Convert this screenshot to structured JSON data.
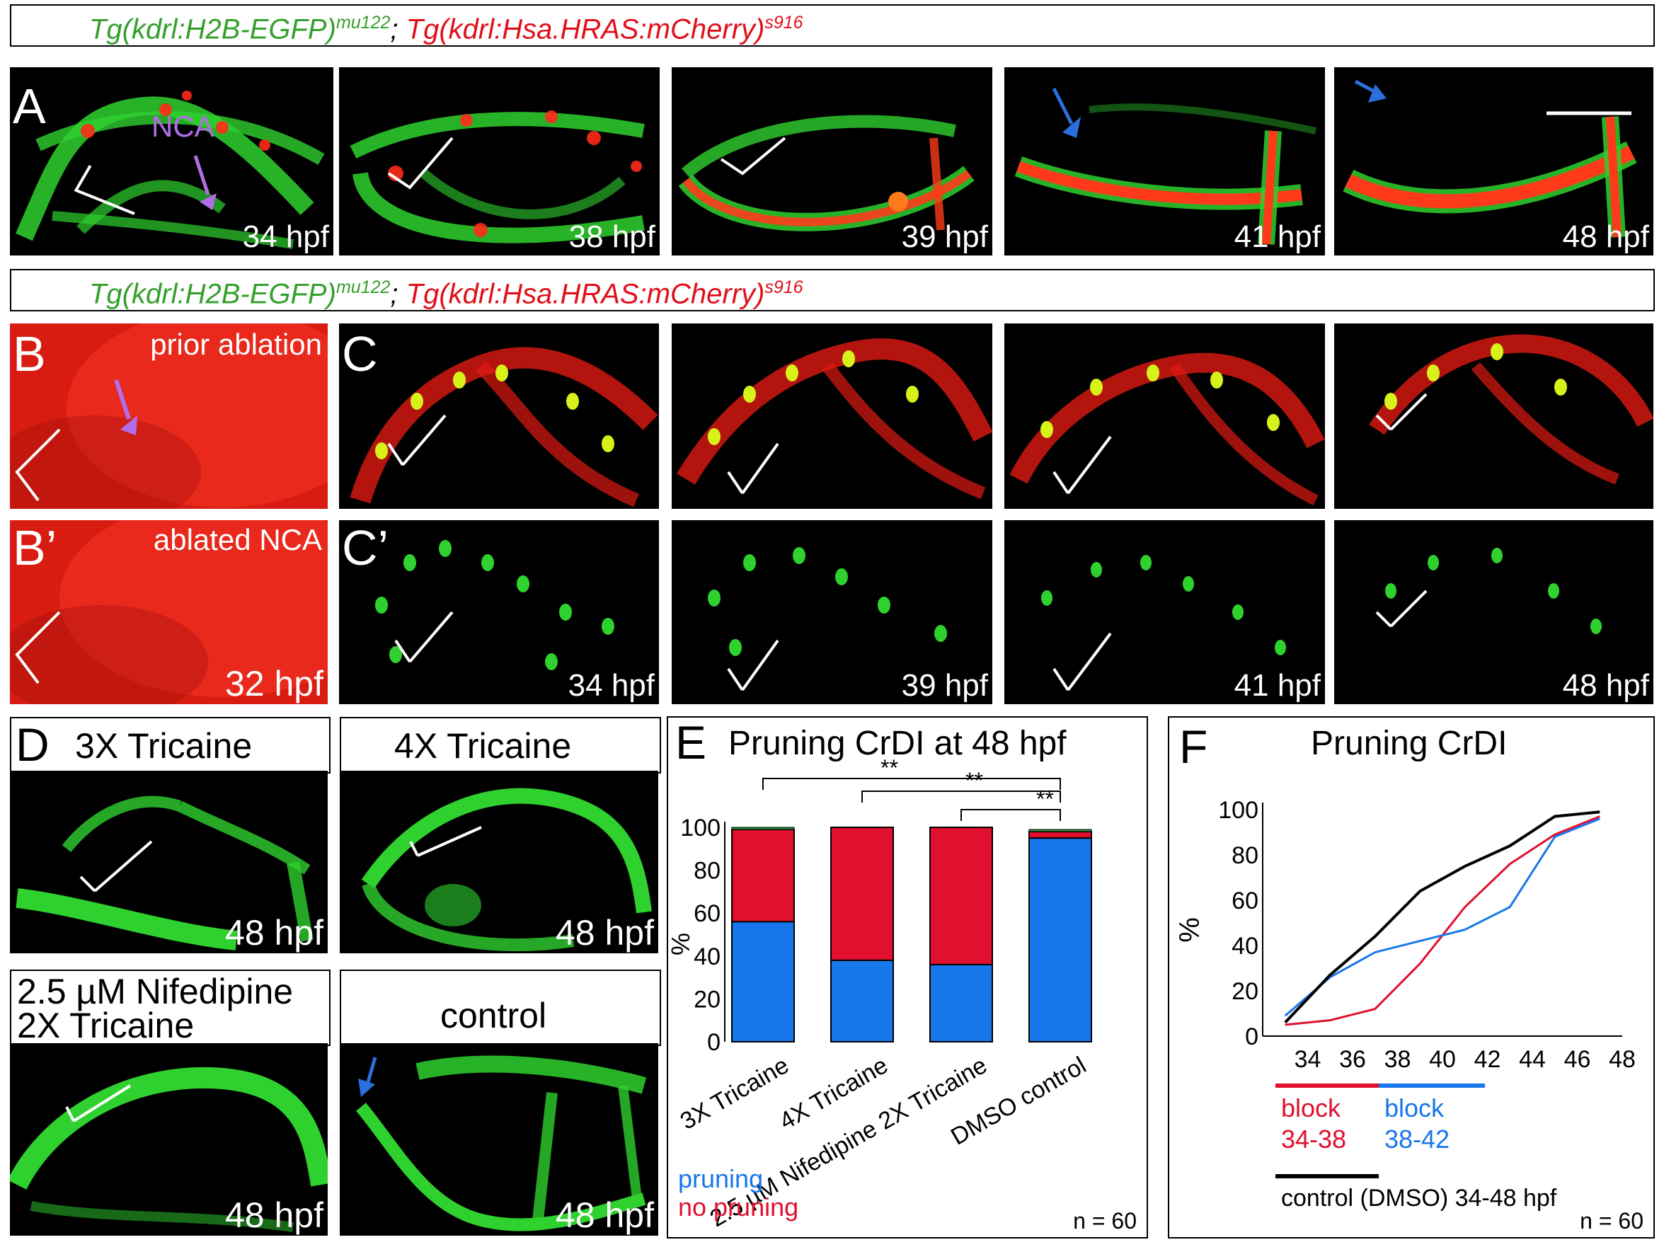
{
  "banner_a": {
    "green": "Tg(kdrl:H2B-EGFP)",
    "green_sup": "mu122",
    "sep": ";",
    "red": "Tg(kdrl:Hsa.HRAS:mCherry)",
    "red_sup": "s916"
  },
  "banner_b": {
    "green": "Tg(kdrl:H2B-EGFP)",
    "green_sup": "mu122",
    "sep": ";",
    "red": "Tg(kdrl:Hsa.HRAS:mCherry)",
    "red_sup": "s916"
  },
  "row_a": {
    "label": "A",
    "nca_label": "NCA",
    "times": [
      "34 hpf",
      "38 hpf",
      "39 hpf",
      "41 hpf",
      "48 hpf"
    ]
  },
  "panel_b": {
    "label": "B",
    "caption": "prior ablation"
  },
  "panel_b2": {
    "label": "B’",
    "caption": "ablated NCA",
    "time": "32 hpf"
  },
  "row_c": {
    "label": "C",
    "label2": "C’",
    "times": [
      "34 hpf",
      "39 hpf",
      "41 hpf",
      "48 hpf"
    ]
  },
  "row_d": {
    "label": "D",
    "panels": [
      {
        "title": "3X Tricaine",
        "time": "48 hpf"
      },
      {
        "title": "4X Tricaine",
        "time": "48 hpf"
      },
      {
        "title": "2.5 µM Nifedipine",
        "title2": "2X Tricaine",
        "time": "48 hpf"
      },
      {
        "title": "control",
        "time": "48 hpf"
      }
    ]
  },
  "colors": {
    "pruning": "#1877ea",
    "no_pruning": "#e0102e",
    "green_tag": "#35a02c",
    "red_tag": "#e0101a",
    "arrow_blue": "#2a6fdc",
    "arrow_purple": "#b26ee8"
  },
  "chart_e": {
    "label": "E",
    "title": "Pruning CrDI  at 48 hpf",
    "n": "n = 60",
    "legend": [
      "pruning",
      "no pruning"
    ],
    "significance": [
      "**",
      "**",
      "**"
    ]
  },
  "chart_f": {
    "label": "F",
    "title": "Pruning CrDI",
    "n": "n = 60",
    "legend": [
      {
        "name": "block",
        "range": "34-38"
      },
      {
        "name": "block",
        "range": "38-42"
      },
      {
        "name": "control (DMSO) 34-48 hpf"
      }
    ]
  },
  "chart_data": [
    {
      "type": "bar",
      "title": "Pruning CrDI  at 48 hpf",
      "categories": [
        "3X Tricaine",
        "4X Tricaine",
        "2.5 µM Nifedipine 2X Tricaine",
        "DMSO control"
      ],
      "ylabel": "%",
      "ylim": [
        0,
        100
      ],
      "yticks": [
        "100",
        "80",
        "60",
        "40",
        "20",
        "0"
      ],
      "stacked": true,
      "series": [
        {
          "name": "pruning",
          "values": [
            56,
            38,
            36,
            95
          ]
        },
        {
          "name": "no pruning",
          "values": [
            43,
            62,
            64,
            3
          ]
        }
      ],
      "extra_top": [
        1,
        0,
        0,
        1
      ]
    },
    {
      "type": "line",
      "title": "Pruning CrDI",
      "ylabel": "%",
      "ylim": [
        0,
        100
      ],
      "xlim": [
        32,
        48
      ],
      "xticks": [
        "34",
        "36",
        "38",
        "40",
        "42",
        "44",
        "46",
        "48"
      ],
      "yticks": [
        "100",
        "80",
        "60",
        "40",
        "20",
        "0"
      ],
      "series": [
        {
          "name": "block 34-38",
          "x": [
            33,
            35,
            37,
            39,
            41,
            43,
            45,
            47
          ],
          "y": [
            5,
            7,
            12,
            32,
            57,
            76,
            89,
            97
          ]
        },
        {
          "name": "block 38-42",
          "x": [
            33,
            35,
            37,
            39,
            41,
            43,
            45,
            47
          ],
          "y": [
            9,
            26,
            37,
            42,
            47,
            57,
            88,
            96
          ]
        },
        {
          "name": "control (DMSO) 34-48 hpf",
          "x": [
            33,
            35,
            37,
            39,
            41,
            43,
            45,
            47
          ],
          "y": [
            6,
            27,
            44,
            64,
            75,
            84,
            97,
            99
          ]
        }
      ]
    }
  ]
}
